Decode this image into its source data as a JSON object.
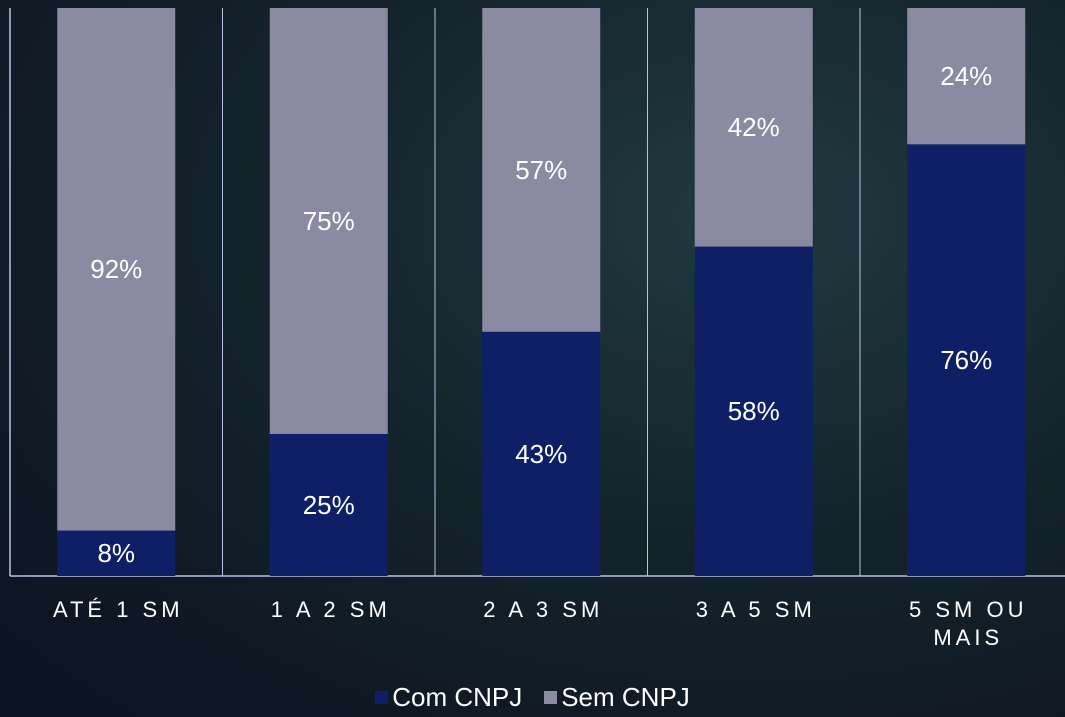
{
  "chart_data": {
    "type": "stacked_bar",
    "categories": [
      "ATÉ 1 SM",
      "1 A 2 SM",
      "2 A 3 SM",
      "3 A 5 SM",
      "5 SM OU MAIS"
    ],
    "series": [
      {
        "name": "Com CNPJ",
        "color": "#0e1f66",
        "values": [
          8,
          25,
          43,
          58,
          76
        ],
        "value_labels": [
          "8%",
          "25%",
          "43%",
          "58%",
          "76%"
        ]
      },
      {
        "name": "Sem CNPJ",
        "color": "#8a8aa3",
        "values": [
          92,
          75,
          57,
          42,
          24
        ],
        "value_labels": [
          "92%",
          "75%",
          "57%",
          "42%",
          "24%"
        ]
      }
    ],
    "ylim": [
      0,
      100
    ],
    "legend": "bottom"
  }
}
